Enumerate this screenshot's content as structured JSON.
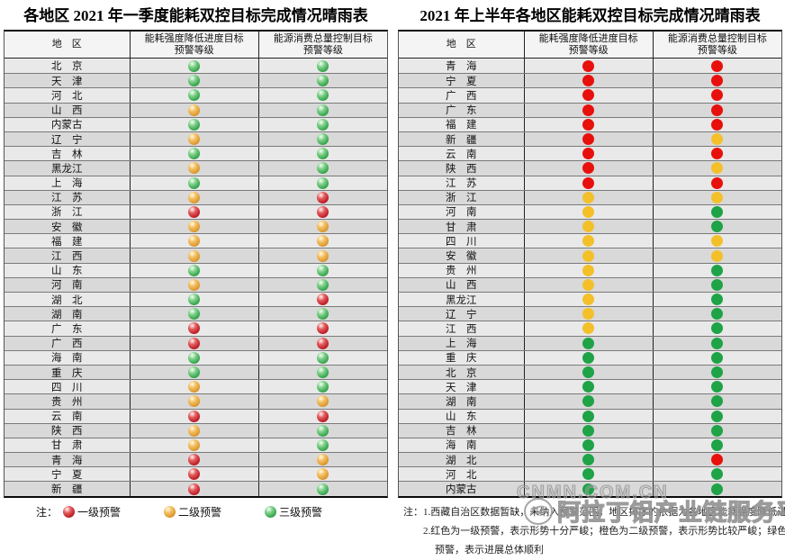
{
  "legend": {
    "prefix": "注：",
    "items": [
      {
        "level": "red",
        "label": "一级预警"
      },
      {
        "level": "yellow",
        "label": "二级预警"
      },
      {
        "level": "green",
        "label": "三级预警"
      }
    ]
  },
  "notes": {
    "lines": [
      "注：1.西藏自治区数据暂缺，未纳入预警范围，地区排序的依据为各地区能耗强度降低进度目标预警等级",
      "2.红色为一级预警，表示形势十分严峻；橙色为二级预警，表示形势比较严峻；绿色为三级",
      "预警，表示进展总体顺利"
    ]
  },
  "watermarks": {
    "cnmn": "CNMN.COM.CN",
    "aladdin": "阿拉丁铝产业链服务平台"
  },
  "colors": {
    "warning_red_flat": "#e8100c",
    "warning_yellow_flat": "#f3c02a",
    "warning_green_flat": "#1ea347",
    "warning_red_glossy": "#c2212a",
    "warning_yellow_glossy": "#df9b2f",
    "warning_green_glossy": "#3aa950",
    "stripe_light": "#e9e9e9",
    "stripe_dark": "#d9d9d9"
  },
  "chart_data": [
    {
      "type": "table",
      "title": "各地区 2021 年一季度能耗双控目标完成情况晴雨表",
      "columns": [
        [
          "地　区"
        ],
        [
          "能耗强度降低进度目标",
          "预警等级"
        ],
        [
          "能源消费总量控制目标",
          "预警等级"
        ]
      ],
      "level_legend": {
        "red": "一级预警",
        "yellow": "二级预警",
        "green": "三级预警"
      },
      "dot_style": "glossy",
      "rows": [
        [
          "北　京",
          "green",
          "green"
        ],
        [
          "天　津",
          "green",
          "green"
        ],
        [
          "河　北",
          "green",
          "green"
        ],
        [
          "山　西",
          "yellow",
          "green"
        ],
        [
          "内蒙古",
          "green",
          "green"
        ],
        [
          "辽　宁",
          "yellow",
          "green"
        ],
        [
          "吉　林",
          "green",
          "green"
        ],
        [
          "黑龙江",
          "yellow",
          "green"
        ],
        [
          "上　海",
          "green",
          "green"
        ],
        [
          "江　苏",
          "yellow",
          "red"
        ],
        [
          "浙　江",
          "red",
          "red"
        ],
        [
          "安　徽",
          "yellow",
          "yellow"
        ],
        [
          "福　建",
          "yellow",
          "yellow"
        ],
        [
          "江　西",
          "yellow",
          "yellow"
        ],
        [
          "山　东",
          "green",
          "green"
        ],
        [
          "河　南",
          "yellow",
          "green"
        ],
        [
          "湖　北",
          "green",
          "red"
        ],
        [
          "湖　南",
          "green",
          "green"
        ],
        [
          "广　东",
          "red",
          "red"
        ],
        [
          "广　西",
          "red",
          "red"
        ],
        [
          "海　南",
          "green",
          "green"
        ],
        [
          "重　庆",
          "green",
          "green"
        ],
        [
          "四　川",
          "yellow",
          "green"
        ],
        [
          "贵　州",
          "yellow",
          "yellow"
        ],
        [
          "云　南",
          "red",
          "red"
        ],
        [
          "陕　西",
          "yellow",
          "green"
        ],
        [
          "甘　肃",
          "yellow",
          "green"
        ],
        [
          "青　海",
          "red",
          "yellow"
        ],
        [
          "宁　夏",
          "red",
          "yellow"
        ],
        [
          "新　疆",
          "red",
          "green"
        ]
      ]
    },
    {
      "type": "table",
      "title": "2021 年上半年各地区能耗双控目标完成情况晴雨表",
      "columns": [
        [
          "地　区"
        ],
        [
          "能耗强度降低进度目标",
          "预警等级"
        ],
        [
          "能源消费总量控制目标",
          "预警等级"
        ]
      ],
      "level_legend": {
        "red": "一级预警",
        "yellow": "二级预警",
        "green": "三级预警"
      },
      "dot_style": "flat",
      "rows": [
        [
          "青　海",
          "red",
          "red"
        ],
        [
          "宁　夏",
          "red",
          "red"
        ],
        [
          "广　西",
          "red",
          "red"
        ],
        [
          "广　东",
          "red",
          "red"
        ],
        [
          "福　建",
          "red",
          "red"
        ],
        [
          "新　疆",
          "red",
          "yellow"
        ],
        [
          "云　南",
          "red",
          "red"
        ],
        [
          "陕　西",
          "red",
          "yellow"
        ],
        [
          "江　苏",
          "red",
          "red"
        ],
        [
          "浙　江",
          "yellow",
          "yellow"
        ],
        [
          "河　南",
          "yellow",
          "green"
        ],
        [
          "甘　肃",
          "yellow",
          "green"
        ],
        [
          "四　川",
          "yellow",
          "yellow"
        ],
        [
          "安　徽",
          "yellow",
          "yellow"
        ],
        [
          "贵　州",
          "yellow",
          "green"
        ],
        [
          "山　西",
          "yellow",
          "green"
        ],
        [
          "黑龙江",
          "yellow",
          "green"
        ],
        [
          "辽　宁",
          "yellow",
          "green"
        ],
        [
          "江　西",
          "yellow",
          "green"
        ],
        [
          "上　海",
          "green",
          "green"
        ],
        [
          "重　庆",
          "green",
          "green"
        ],
        [
          "北　京",
          "green",
          "green"
        ],
        [
          "天　津",
          "green",
          "green"
        ],
        [
          "湖　南",
          "green",
          "green"
        ],
        [
          "山　东",
          "green",
          "green"
        ],
        [
          "吉　林",
          "green",
          "green"
        ],
        [
          "海　南",
          "green",
          "green"
        ],
        [
          "湖　北",
          "green",
          "red"
        ],
        [
          "河　北",
          "green",
          "green"
        ],
        [
          "内蒙古",
          "green",
          "green"
        ]
      ]
    }
  ]
}
